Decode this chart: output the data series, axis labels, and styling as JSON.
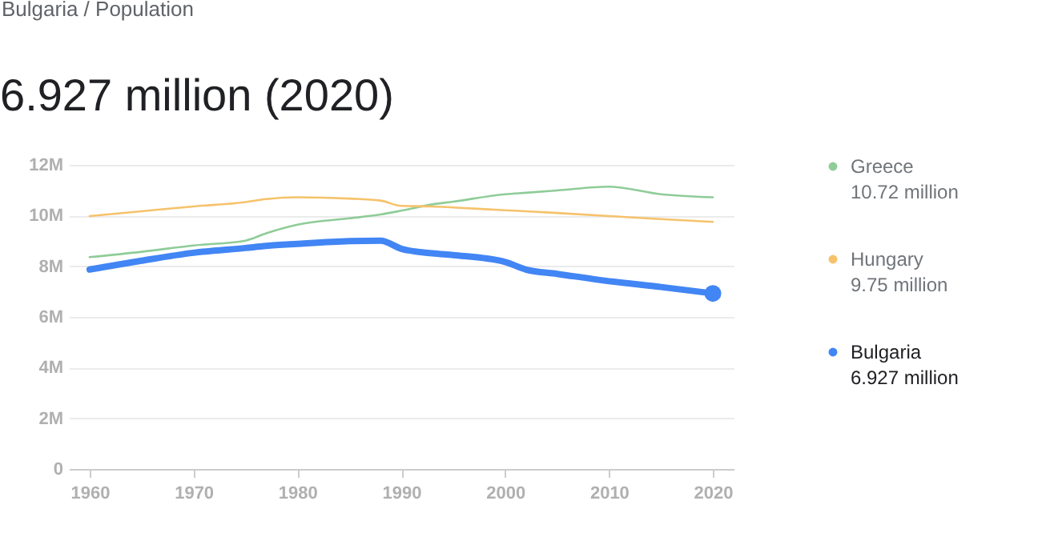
{
  "chart_data": {
    "type": "line",
    "title": "6.927 million (2020)",
    "annotations": [
      "Bulgaria / Population",
      "10.72 million",
      "9.75 million",
      "6.927 million"
    ],
    "x": [
      1960,
      1965,
      1970,
      1975,
      1977,
      1980,
      1985,
      1988,
      1990,
      1993,
      1995,
      2000,
      2002,
      2005,
      2010,
      2015,
      2020
    ],
    "series": [
      {
        "name": "Greece",
        "color": "#8fcc98",
        "values": [
          8.36,
          8.57,
          8.82,
          9.01,
          9.3,
          9.64,
          9.89,
          10.04,
          10.19,
          10.44,
          10.55,
          10.84,
          10.9,
          10.99,
          11.14,
          10.84,
          10.72
        ]
      },
      {
        "name": "Hungary",
        "color": "#f6c26b",
        "values": [
          9.98,
          10.17,
          10.36,
          10.53,
          10.65,
          10.72,
          10.67,
          10.59,
          10.38,
          10.36,
          10.32,
          10.21,
          10.17,
          10.1,
          9.98,
          9.86,
          9.75
        ]
      },
      {
        "name": "Bulgaria",
        "color": "#4285f4",
        "values": [
          7.87,
          8.22,
          8.53,
          8.72,
          8.8,
          8.88,
          8.99,
          9.01,
          8.69,
          8.51,
          8.44,
          8.17,
          7.87,
          7.7,
          7.41,
          7.18,
          6.927
        ]
      }
    ],
    "xlim": [
      1958,
      2022
    ],
    "xticks": [
      1960,
      1970,
      1980,
      1990,
      2000,
      2010,
      2020
    ],
    "ylim": [
      0,
      12
    ],
    "yticks": [
      0,
      {
        "value": 2,
        "label": "2M"
      },
      {
        "value": 4,
        "label": "4M"
      },
      {
        "value": 6,
        "label": "6M"
      },
      {
        "value": 8,
        "label": "8M"
      },
      {
        "value": 10,
        "label": "10M"
      },
      {
        "value": 12,
        "label": "12M"
      }
    ],
    "grid": "y",
    "legend": "right"
  }
}
